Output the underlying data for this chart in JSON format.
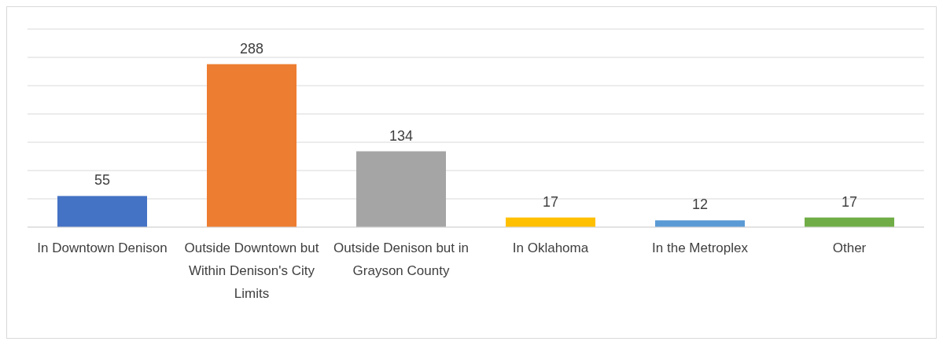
{
  "chart_data": {
    "type": "bar",
    "categories": [
      "In Downtown Denison",
      "Outside Downtown but Within Denison's City Limits",
      "Outside Denison but in Grayson County",
      "In Oklahoma",
      "In the Metroplex",
      "Other"
    ],
    "values": [
      55,
      288,
      134,
      17,
      12,
      17
    ],
    "colors": [
      "#4472c4",
      "#ed7d31",
      "#a5a5a5",
      "#ffc000",
      "#5b9bd5",
      "#70ad47"
    ],
    "ylim": [
      0,
      350
    ],
    "yticks": [
      {
        "value": 0,
        "label": null
      },
      {
        "value": 50,
        "label": null
      },
      {
        "value": 100,
        "label": null
      },
      {
        "value": 150,
        "label": null
      },
      {
        "value": 200,
        "label": null
      },
      {
        "value": 250,
        "label": null
      },
      {
        "value": 300,
        "label": null
      },
      {
        "value": 350,
        "label": null
      }
    ],
    "tick_labels": "x",
    "grid": "y",
    "data_labels": true
  }
}
